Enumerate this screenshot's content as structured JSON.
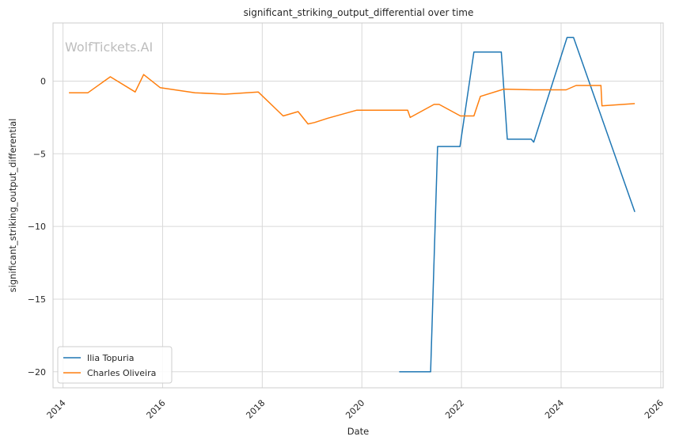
{
  "chart_data": {
    "type": "line",
    "title": "significant_striking_output_differential over time",
    "xlabel": "Date",
    "ylabel": "significant_striking_output_differential",
    "watermark": "WolfTickets.AI",
    "xlim": [
      2013.8,
      2026.05
    ],
    "ylim": [
      -21.1,
      4.0
    ],
    "x_ticks": [
      2014,
      2016,
      2018,
      2020,
      2022,
      2024,
      2026
    ],
    "y_ticks": [
      0,
      -5,
      -10,
      -15,
      -20
    ],
    "x_tick_labels": [
      "2014",
      "2016",
      "2018",
      "2020",
      "2022",
      "2024",
      "2026"
    ],
    "y_tick_labels": [
      "0",
      "−5",
      "−10",
      "−15",
      "−20"
    ],
    "grid": true,
    "legend_position": "lower-left",
    "series": [
      {
        "name": "Ilia Topuria",
        "color": "#1f77b4",
        "x": [
          2020.75,
          2021.38,
          2021.52,
          2021.97,
          2022.25,
          2022.8,
          2022.92,
          2023.4,
          2023.45,
          2024.12,
          2024.25,
          2025.48
        ],
        "y": [
          -20.0,
          -20.0,
          -4.5,
          -4.5,
          2.0,
          2.0,
          -4.0,
          -4.0,
          -4.2,
          3.0,
          3.0,
          -9.0
        ]
      },
      {
        "name": "Charles Oliveira",
        "color": "#ff7f0e",
        "x": [
          2014.12,
          2014.5,
          2014.95,
          2015.45,
          2015.62,
          2015.95,
          2016.65,
          2017.25,
          2017.92,
          2018.42,
          2018.72,
          2018.92,
          2019.05,
          2019.32,
          2019.9,
          2020.92,
          2020.97,
          2021.45,
          2021.55,
          2021.98,
          2022.25,
          2022.38,
          2022.85,
          2023.45,
          2024.1,
          2024.3,
          2024.8,
          2024.82,
          2025.48
        ],
        "y": [
          -0.8,
          -0.8,
          0.3,
          -0.75,
          0.45,
          -0.45,
          -0.8,
          -0.9,
          -0.75,
          -2.4,
          -2.1,
          -2.95,
          -2.85,
          -2.55,
          -2.0,
          -2.0,
          -2.5,
          -1.6,
          -1.6,
          -2.4,
          -2.4,
          -1.05,
          -0.55,
          -0.6,
          -0.6,
          -0.3,
          -0.3,
          -1.7,
          -1.55
        ]
      }
    ]
  }
}
